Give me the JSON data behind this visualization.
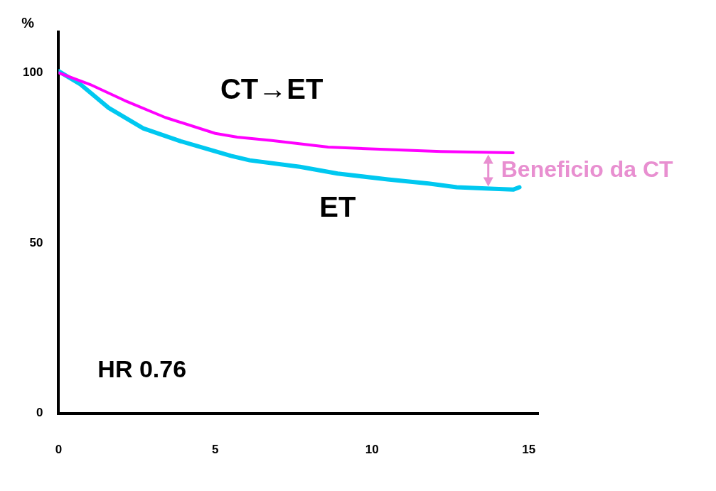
{
  "chart_data": {
    "type": "line",
    "ylabel": "%",
    "series": [
      {
        "name": "CT→ET",
        "color": "#ff00ff",
        "x": [
          0,
          1,
          2.1,
          3.4,
          5,
          5.7,
          6.8,
          8.6,
          10.4,
          12.2,
          14.5
        ],
        "values": [
          100,
          96.6,
          91.9,
          86.9,
          82.2,
          81.1,
          80.1,
          78.2,
          77.5,
          76.9,
          76.5
        ]
      },
      {
        "name": "ET",
        "color": "#00c8f0",
        "x": [
          0,
          0.7,
          1.6,
          2.7,
          3.9,
          4.8,
          5.5,
          6.1,
          7.7,
          8.9,
          10.5,
          11.8,
          12.7,
          13.9,
          14.5,
          14.7
        ],
        "values": [
          100.5,
          96.6,
          89.7,
          83.7,
          79.9,
          77.5,
          75.6,
          74.3,
          72.4,
          70.4,
          68.7,
          67.5,
          66.4,
          65.9,
          65.7,
          66.4
        ]
      }
    ],
    "xlim": [
      0,
      15.3
    ],
    "xticks": [
      0,
      5,
      10,
      15
    ],
    "ylim": [
      0,
      112
    ],
    "yticks": [
      0,
      50,
      100
    ],
    "grid": false,
    "legend": false,
    "marker": "none",
    "line_style": "solid",
    "annotations": [
      "Beneficio da CT",
      "HR 0.76"
    ]
  }
}
